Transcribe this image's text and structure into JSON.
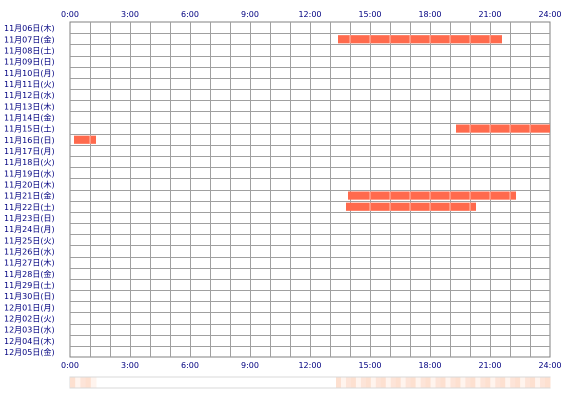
{
  "chart_data": {
    "type": "heatmap",
    "title": "",
    "xlabel": "",
    "ylabel": "",
    "x_unit": "hours",
    "xlim": [
      0,
      24
    ],
    "x_ticks": [
      "0:00",
      "3:00",
      "6:00",
      "9:00",
      "12:00",
      "15:00",
      "18:00",
      "21:00",
      "24:00"
    ],
    "rows": [
      "11月06日(木)",
      "11月07日(金)",
      "11月08日(土)",
      "11月09日(日)",
      "11月10日(月)",
      "11月11日(火)",
      "11月12日(水)",
      "11月13日(木)",
      "11月14日(金)",
      "11月15日(土)",
      "11月16日(日)",
      "11月17日(月)",
      "11月18日(火)",
      "11月19日(水)",
      "11月20日(木)",
      "11月21日(金)",
      "11月22日(土)",
      "11月23日(日)",
      "11月24日(月)",
      "11月25日(火)",
      "11月26日(水)",
      "11月27日(木)",
      "11月28日(金)",
      "11月29日(土)",
      "11月30日(日)",
      "12月01日(月)",
      "12月02日(火)",
      "12月03日(水)",
      "12月04日(木)",
      "12月05日(金)"
    ],
    "grid": true,
    "bar_color": "#ff6a4d",
    "activity": [
      {
        "row": "11月07日(金)",
        "start": 13.4,
        "end": 21.6
      },
      {
        "row": "11月15日(土)",
        "start": 19.3,
        "end": 24.0
      },
      {
        "row": "11月16日(日)",
        "start": 0.2,
        "end": 1.3
      },
      {
        "row": "11月21日(金)",
        "start": 13.9,
        "end": 22.3
      },
      {
        "row": "11月22日(土)",
        "start": 13.8,
        "end": 20.3
      }
    ],
    "summary_strip": {
      "colors": [
        "#fde0d0",
        "#fff4ee",
        "#fde4d8"
      ],
      "active_ranges": [
        [
          0.0,
          1.3
        ],
        [
          13.3,
          24.0
        ]
      ]
    }
  }
}
